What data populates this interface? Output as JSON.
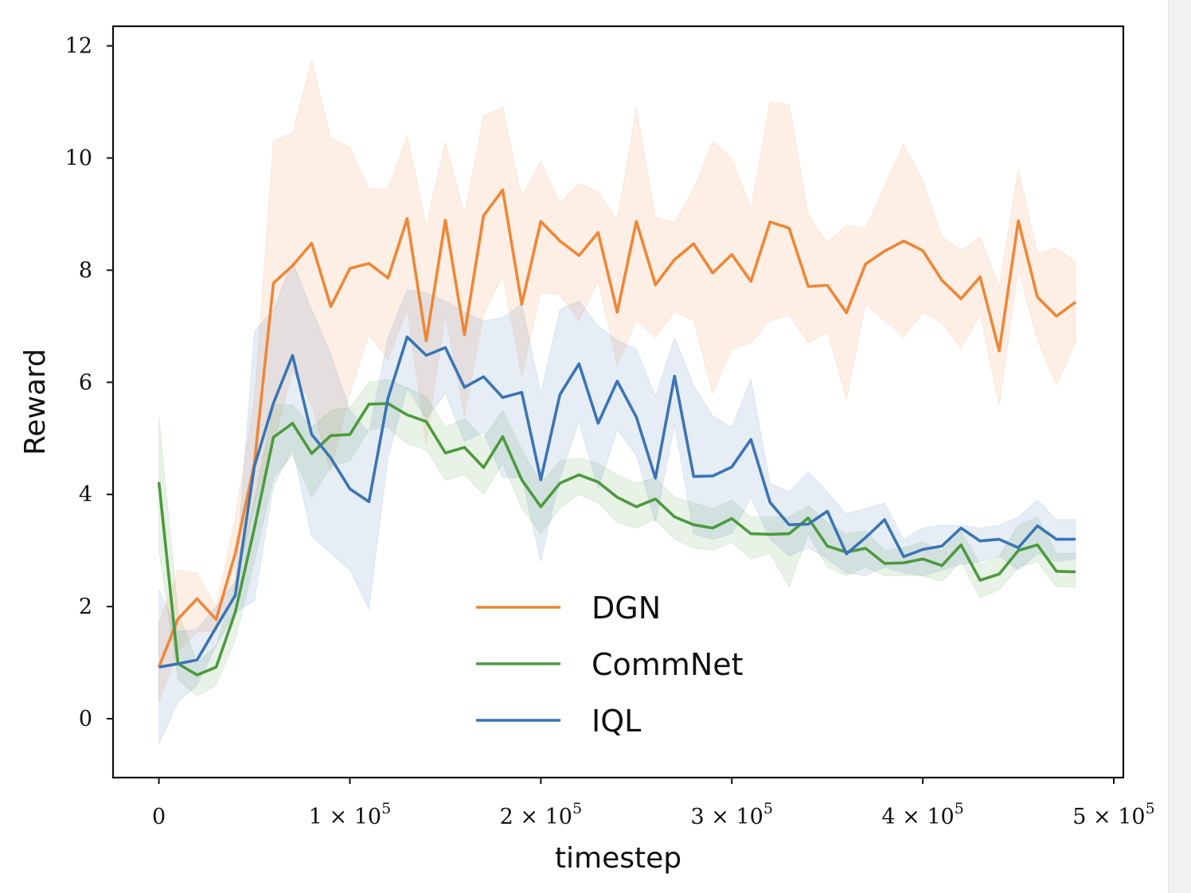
{
  "chart_data": {
    "type": "line",
    "xlabel": "timestep",
    "ylabel": "Reward",
    "xlim": [
      -24000,
      505000
    ],
    "ylim": [
      -1.05,
      12.35
    ],
    "xticks": [
      0,
      100000,
      200000,
      300000,
      400000,
      500000
    ],
    "xtick_labels": [
      {
        "mant": "0",
        "exp": ""
      },
      {
        "mant": "1 × 10",
        "exp": "5"
      },
      {
        "mant": "2 × 10",
        "exp": "5"
      },
      {
        "mant": "3 × 10",
        "exp": "5"
      },
      {
        "mant": "4 × 10",
        "exp": "5"
      },
      {
        "mant": "5 × 10",
        "exp": "5"
      }
    ],
    "yticks": [
      0,
      2,
      4,
      6,
      8,
      10,
      12
    ],
    "ytick_labels": [
      "0",
      "2",
      "4",
      "6",
      "8",
      "10",
      "12"
    ],
    "legend_position": "lower-center",
    "x": [
      0,
      10000,
      20000,
      30000,
      40000,
      50000,
      60000,
      70000,
      80000,
      90000,
      100000,
      110000,
      120000,
      130000,
      140000,
      150000,
      160000,
      170000,
      180000,
      190000,
      200000,
      210000,
      220000,
      230000,
      240000,
      250000,
      260000,
      270000,
      280000,
      290000,
      300000,
      310000,
      320000,
      330000,
      340000,
      350000,
      360000,
      370000,
      380000,
      390000,
      400000,
      410000,
      420000,
      430000,
      440000,
      450000,
      460000,
      470000,
      480000
    ],
    "series": [
      {
        "name": "DGN",
        "color": "#ef8636",
        "values": [
          0.92,
          1.78,
          2.14,
          1.77,
          2.95,
          4.55,
          7.77,
          8.08,
          8.48,
          7.35,
          8.03,
          8.12,
          7.86,
          8.92,
          6.74,
          8.89,
          6.85,
          8.97,
          9.43,
          7.39,
          8.87,
          8.52,
          8.26,
          8.67,
          7.25,
          8.87,
          7.74,
          8.19,
          8.47,
          7.95,
          8.28,
          7.8,
          8.86,
          8.75,
          7.71,
          7.73,
          7.24,
          8.11,
          8.34,
          8.52,
          8.35,
          7.82,
          7.49,
          7.88,
          6.56,
          8.88,
          7.52,
          7.18,
          7.43
        ],
        "upper": [
          1.7,
          2.65,
          2.6,
          2.0,
          3.6,
          5.7,
          10.3,
          10.45,
          11.75,
          10.35,
          10.2,
          9.45,
          9.45,
          10.4,
          8.8,
          10.3,
          9.0,
          10.75,
          10.9,
          9.3,
          9.95,
          9.2,
          9.55,
          9.4,
          8.9,
          10.9,
          8.95,
          8.85,
          9.45,
          10.3,
          10.0,
          9.1,
          11.0,
          10.95,
          9.0,
          8.5,
          8.8,
          8.75,
          9.5,
          10.25,
          9.6,
          8.6,
          8.35,
          8.6,
          7.7,
          9.8,
          8.3,
          8.4,
          8.15
        ],
        "lower": [
          0.3,
          1.2,
          1.55,
          1.55,
          2.4,
          3.8,
          4.9,
          6.2,
          5.6,
          4.4,
          5.8,
          6.85,
          6.4,
          7.3,
          4.9,
          7.2,
          5.4,
          7.2,
          7.9,
          6.1,
          7.6,
          7.55,
          7.1,
          7.8,
          6.3,
          7.1,
          6.8,
          7.25,
          7.1,
          5.8,
          6.6,
          6.7,
          7.1,
          7.2,
          6.7,
          6.9,
          5.7,
          7.4,
          7.1,
          6.8,
          7.25,
          7.05,
          6.6,
          7.2,
          5.6,
          8.0,
          6.75,
          5.95,
          6.7
        ]
      },
      {
        "name": "CommNet",
        "color": "#4c9a3e",
        "values": [
          4.22,
          0.98,
          0.78,
          0.92,
          1.9,
          3.4,
          5.02,
          5.27,
          4.73,
          5.05,
          5.07,
          5.61,
          5.62,
          5.42,
          5.3,
          4.74,
          4.84,
          4.48,
          5.03,
          4.26,
          3.78,
          4.2,
          4.35,
          4.22,
          3.95,
          3.78,
          3.92,
          3.6,
          3.46,
          3.4,
          3.57,
          3.3,
          3.29,
          3.3,
          3.58,
          3.08,
          2.97,
          3.04,
          2.77,
          2.78,
          2.85,
          2.73,
          3.1,
          2.47,
          2.58,
          3.0,
          3.1,
          2.63,
          2.62
        ],
        "upper": [
          5.4,
          1.9,
          1.0,
          1.3,
          2.4,
          3.9,
          5.6,
          5.6,
          5.2,
          5.5,
          5.55,
          6.0,
          6.05,
          5.9,
          5.75,
          5.2,
          5.35,
          5.0,
          5.5,
          4.8,
          4.2,
          4.6,
          4.65,
          4.55,
          4.35,
          4.2,
          4.3,
          3.95,
          3.85,
          3.75,
          3.9,
          3.6,
          3.6,
          3.6,
          3.8,
          3.5,
          3.3,
          3.35,
          3.0,
          3.05,
          3.15,
          3.0,
          3.35,
          2.75,
          2.9,
          3.45,
          3.6,
          2.95,
          2.95
        ],
        "lower": [
          3.0,
          0.7,
          0.4,
          0.6,
          1.4,
          2.8,
          4.3,
          4.7,
          3.95,
          4.5,
          4.6,
          5.15,
          5.2,
          4.9,
          4.8,
          4.25,
          4.35,
          4.0,
          4.55,
          3.75,
          3.3,
          3.75,
          4.0,
          3.85,
          3.5,
          3.4,
          3.55,
          3.2,
          3.05,
          3.0,
          3.15,
          2.85,
          2.95,
          2.35,
          3.3,
          2.7,
          2.55,
          2.7,
          2.55,
          2.55,
          2.55,
          2.45,
          2.8,
          2.15,
          2.3,
          2.7,
          2.8,
          2.35,
          2.35
        ]
      },
      {
        "name": "IQL",
        "color": "#3a74b4",
        "values": [
          0.92,
          0.98,
          1.05,
          1.63,
          2.2,
          4.5,
          5.63,
          6.48,
          5.07,
          4.65,
          4.1,
          3.87,
          5.72,
          6.81,
          6.48,
          6.62,
          5.91,
          6.1,
          5.73,
          5.82,
          4.26,
          5.78,
          6.33,
          5.27,
          6.02,
          5.38,
          4.29,
          6.11,
          4.32,
          4.33,
          4.49,
          4.98,
          3.86,
          3.46,
          3.47,
          3.7,
          2.94,
          3.23,
          3.55,
          2.89,
          3.02,
          3.08,
          3.4,
          3.17,
          3.2,
          3.05,
          3.44,
          3.2,
          3.2
        ],
        "upper": [
          2.3,
          1.55,
          1.6,
          2.0,
          2.45,
          6.9,
          7.3,
          8.15,
          7.3,
          6.5,
          5.5,
          5.1,
          6.8,
          7.65,
          7.6,
          7.45,
          7.25,
          7.1,
          7.15,
          7.4,
          5.8,
          7.3,
          7.45,
          7.0,
          6.75,
          6.6,
          5.75,
          6.8,
          5.95,
          5.4,
          5.2,
          6.05,
          4.2,
          4.05,
          4.4,
          4.05,
          3.65,
          3.75,
          3.85,
          3.2,
          3.4,
          3.45,
          3.45,
          3.4,
          3.45,
          3.6,
          3.9,
          3.55,
          3.55
        ],
        "lower": [
          -0.45,
          0.3,
          0.6,
          1.3,
          1.9,
          2.1,
          4.15,
          4.8,
          3.25,
          2.95,
          2.65,
          1.95,
          4.65,
          5.9,
          5.35,
          5.8,
          4.95,
          5.1,
          4.3,
          4.3,
          2.8,
          4.3,
          5.3,
          4.1,
          5.15,
          4.7,
          3.5,
          5.25,
          3.3,
          3.2,
          3.3,
          3.95,
          3.2,
          2.9,
          3.05,
          2.85,
          2.6,
          2.55,
          2.7,
          2.6,
          2.55,
          2.65,
          2.75,
          2.8,
          2.9,
          2.65,
          2.95,
          2.8,
          2.85
        ]
      }
    ]
  }
}
